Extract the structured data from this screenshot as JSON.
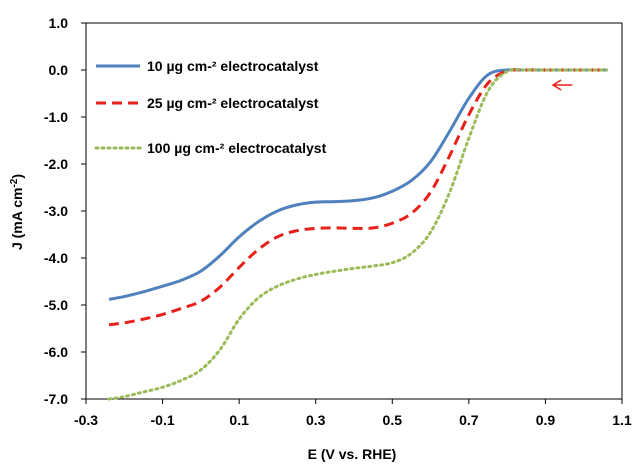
{
  "chart_data": {
    "type": "line",
    "title": "",
    "xlabel": "E (V vs. RHE)",
    "ylabel": "J (mA cm-2)",
    "ylabel_main": "J (mA cm",
    "ylabel_sup": "-2",
    "ylabel_end": ")",
    "xlim": [
      -0.3,
      1.1
    ],
    "ylim": [
      -7.0,
      1.0
    ],
    "xticks": [
      -0.3,
      -0.1,
      0.1,
      0.3,
      0.5,
      0.7,
      0.9,
      1.1
    ],
    "xtick_labels": [
      "-0.3",
      "-0.1",
      "0.1",
      "0.3",
      "0.5",
      "0.7",
      "0.9",
      "1.1"
    ],
    "yticks": [
      1.0,
      0.0,
      -1.0,
      -2.0,
      -3.0,
      -4.0,
      -5.0,
      -6.0,
      -7.0
    ],
    "ytick_labels": [
      "1.0",
      "0.0",
      "-1.0",
      "-2.0",
      "-3.0",
      "-4.0",
      "-5.0",
      "-6.0",
      "-7.0"
    ],
    "grid": false,
    "legend_position": "top-left",
    "annotation": {
      "type": "arrow",
      "direction": "left",
      "color": "#e8201a",
      "x_from": 0.97,
      "x_to": 0.92,
      "y": -0.32
    },
    "series": [
      {
        "name": "10 µg cm-² electrocatalyst",
        "color": "#4f81bd",
        "style": "solid",
        "x": [
          -0.24,
          -0.2,
          -0.15,
          -0.1,
          -0.05,
          0.0,
          0.05,
          0.1,
          0.15,
          0.2,
          0.25,
          0.3,
          0.35,
          0.4,
          0.45,
          0.5,
          0.55,
          0.6,
          0.65,
          0.7,
          0.75,
          0.8,
          0.85,
          0.9,
          0.95,
          1.0,
          1.06
        ],
        "y": [
          -4.88,
          -4.82,
          -4.72,
          -4.6,
          -4.47,
          -4.28,
          -3.95,
          -3.55,
          -3.23,
          -3.0,
          -2.87,
          -2.81,
          -2.8,
          -2.78,
          -2.72,
          -2.58,
          -2.35,
          -1.95,
          -1.3,
          -0.6,
          -0.1,
          0.0,
          0.0,
          0.0,
          0.0,
          0.0,
          0.0
        ]
      },
      {
        "name": "25 µg cm-² electrocatalyst",
        "color": "#e8201a",
        "style": "dashed",
        "x": [
          -0.24,
          -0.2,
          -0.15,
          -0.1,
          -0.05,
          0.0,
          0.05,
          0.1,
          0.15,
          0.2,
          0.25,
          0.3,
          0.35,
          0.4,
          0.45,
          0.5,
          0.55,
          0.6,
          0.65,
          0.7,
          0.75,
          0.8,
          0.85,
          0.9,
          0.95,
          1.0,
          1.06
        ],
        "y": [
          -5.42,
          -5.38,
          -5.3,
          -5.2,
          -5.07,
          -4.92,
          -4.62,
          -4.2,
          -3.82,
          -3.55,
          -3.42,
          -3.37,
          -3.36,
          -3.37,
          -3.36,
          -3.26,
          -3.05,
          -2.6,
          -1.82,
          -0.95,
          -0.28,
          -0.02,
          0.0,
          0.0,
          0.0,
          0.0,
          0.0
        ]
      },
      {
        "name": "100 µg cm-² electrocatalyst",
        "color": "#9bbb59",
        "style": "dotted",
        "x": [
          -0.24,
          -0.2,
          -0.15,
          -0.1,
          -0.05,
          0.0,
          0.05,
          0.1,
          0.15,
          0.2,
          0.25,
          0.3,
          0.35,
          0.4,
          0.45,
          0.5,
          0.55,
          0.6,
          0.65,
          0.7,
          0.75,
          0.8,
          0.85,
          0.9,
          0.95,
          1.0,
          1.06
        ],
        "y": [
          -7.0,
          -6.95,
          -6.85,
          -6.75,
          -6.6,
          -6.38,
          -5.95,
          -5.3,
          -4.85,
          -4.6,
          -4.45,
          -4.35,
          -4.28,
          -4.22,
          -4.17,
          -4.1,
          -3.9,
          -3.45,
          -2.6,
          -1.45,
          -0.45,
          -0.03,
          0.0,
          0.0,
          0.0,
          0.0,
          0.0
        ]
      }
    ]
  }
}
